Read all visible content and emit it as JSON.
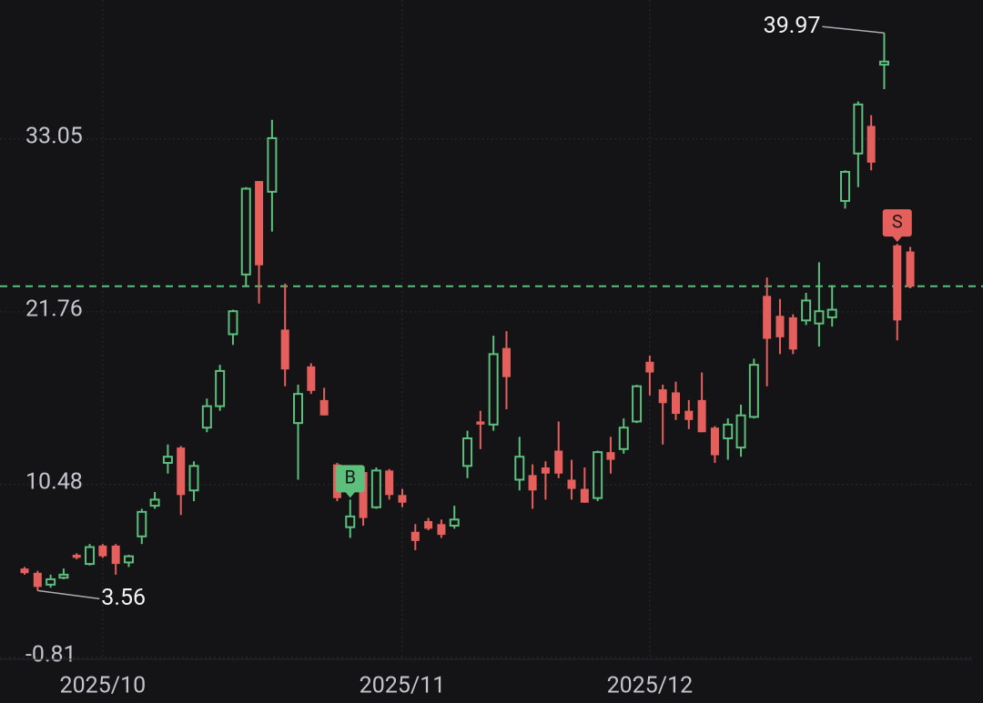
{
  "chart_data": {
    "type": "candlestick",
    "open": [
      5.0,
      4.72,
      3.95,
      4.4,
      5.9,
      5.3,
      6.5,
      6.5,
      5.4,
      7.1,
      9.1,
      11.9,
      12.9,
      10.1,
      14.2,
      15.6,
      20.3,
      24.2,
      30.3,
      29.6,
      20.6,
      14.5,
      18.2,
      16.0,
      11.8,
      7.7,
      11.3,
      9.0,
      11.4,
      9.8,
      7.4,
      8.1,
      7.9,
      7.8,
      11.7,
      14.6,
      14.4,
      19.4,
      10.8,
      11.1,
      11.6,
      12.7,
      10.8,
      10.2,
      9.6,
      12.6,
      12.8,
      14.6,
      18.5,
      16.7,
      16.5,
      15.3,
      16.0,
      14.2,
      13.5,
      12.9,
      14.9,
      22.8,
      21.5,
      21.4,
      21.2,
      21.0,
      21.4,
      29.0,
      32.1,
      33.9,
      37.9,
      26.1,
      25.7
    ],
    "high": [
      5.1,
      4.85,
      4.6,
      5.0,
      6.0,
      6.6,
      6.6,
      6.6,
      5.9,
      8.9,
      10.0,
      13.1,
      13.0,
      12.0,
      16.1,
      18.3,
      21.9,
      29.9,
      30.3,
      34.3,
      23.6,
      17.0,
      18.4,
      16.8,
      11.9,
      9.5,
      11.5,
      11.6,
      11.5,
      10.2,
      7.9,
      8.3,
      8.2,
      9.1,
      14.0,
      15.3,
      20.2,
      20.5,
      13.6,
      11.8,
      12.0,
      14.6,
      12.1,
      11.6,
      12.7,
      13.6,
      14.8,
      17.0,
      18.9,
      17.0,
      17.2,
      16.0,
      17.8,
      14.3,
      14.8,
      15.7,
      18.7,
      24.0,
      22.6,
      21.6,
      23.0,
      25.0,
      23.5,
      31.0,
      35.5,
      34.6,
      39.97,
      26.2,
      26.0
    ],
    "low": [
      4.6,
      3.56,
      3.75,
      4.3,
      5.6,
      5.2,
      5.7,
      4.6,
      5.1,
      6.6,
      8.9,
      11.2,
      8.5,
      9.4,
      13.9,
      15.3,
      19.6,
      23.4,
      22.3,
      27.0,
      16.9,
      10.8,
      16.4,
      15.0,
      9.4,
      7.0,
      7.8,
      8.9,
      9.5,
      9.0,
      6.2,
      7.5,
      7.0,
      7.6,
      10.9,
      12.8,
      14.0,
      15.4,
      10.1,
      8.9,
      9.5,
      10.9,
      9.5,
      9.3,
      9.4,
      11.2,
      12.5,
      14.5,
      16.3,
      13.1,
      14.7,
      14.1,
      13.9,
      11.9,
      12.1,
      12.3,
      14.8,
      16.9,
      19.0,
      19.0,
      20.9,
      19.5,
      20.8,
      28.5,
      29.9,
      31.0,
      36.3,
      19.9,
      23.3
    ],
    "close": [
      4.7,
      3.8,
      4.3,
      4.6,
      5.7,
      6.4,
      5.8,
      5.3,
      5.8,
      8.7,
      9.5,
      12.3,
      9.8,
      11.7,
      15.6,
      17.9,
      21.8,
      29.8,
      24.8,
      33.1,
      18.0,
      16.4,
      16.6,
      15.0,
      9.6,
      8.4,
      8.3,
      11.4,
      9.8,
      9.3,
      6.8,
      7.6,
      7.2,
      8.2,
      13.5,
      14.4,
      19.0,
      17.5,
      12.3,
      10.1,
      11.2,
      11.2,
      10.2,
      9.3,
      12.6,
      12.1,
      14.2,
      16.9,
      17.8,
      15.8,
      15.1,
      14.7,
      13.9,
      12.4,
      14.4,
      15.0,
      18.3,
      20.0,
      20.1,
      19.3,
      22.5,
      21.8,
      21.9,
      30.9,
      35.3,
      31.5,
      38.1,
      21.2,
      23.4
    ],
    "up_color": "#5cbf7c",
    "down_color": "#e5605c",
    "ylim": [
      -0.81,
      42.12
    ],
    "yticks": [
      33.05,
      21.76,
      10.48,
      -0.81
    ],
    "xticks": [
      {
        "value": 6,
        "label": "2025/10"
      },
      {
        "value": 29,
        "label": "2025/11"
      },
      {
        "value": 48,
        "label": "2025/12"
      }
    ],
    "grid": true,
    "reference_line": {
      "value": 23.43,
      "color": "#5cbf7c"
    },
    "annotations": [
      {
        "text": "3.56",
        "index": 1
      },
      {
        "text": "39.97",
        "index": 66
      }
    ],
    "markers": [
      {
        "text": "B",
        "index": 25,
        "color": "#5cbf7c"
      },
      {
        "text": "S",
        "index": 67,
        "color": "#e5605c"
      }
    ]
  }
}
